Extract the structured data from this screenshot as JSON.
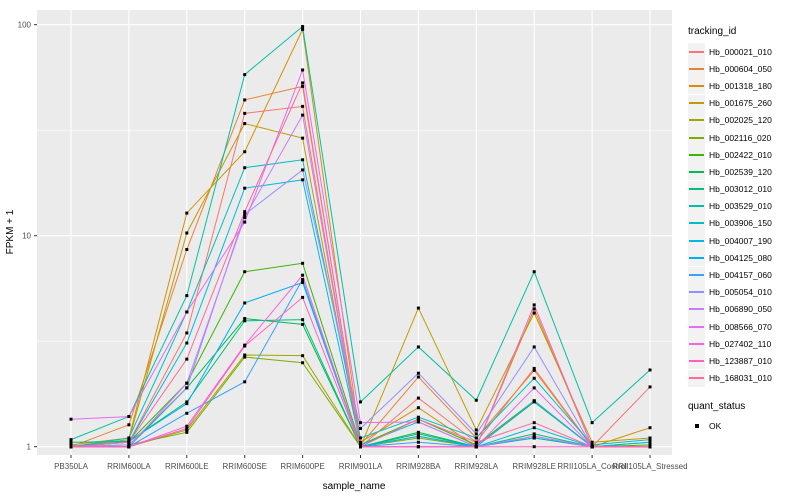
{
  "chart_data": {
    "type": "line",
    "title": "",
    "xlabel": "sample_name",
    "ylabel": "FPKM + 1",
    "yscale": "log10",
    "ylim": [
      0.91,
      117
    ],
    "yticks": [
      1,
      10,
      100
    ],
    "ytick_labels": [
      "1",
      "10",
      "100"
    ],
    "yminor": [
      3.162,
      31.62
    ],
    "grid": true,
    "panel_bg": "#ebebeb",
    "grid_color": "#ffffff",
    "point_color": "#000000",
    "point_shape": "square",
    "categories": [
      "PB350LA",
      "RRIM600LA",
      "RRIM600LE",
      "RRIM600SE",
      "RRIM600PE",
      "RRIM901LA",
      "RRIM928BA",
      "RRIM928LA",
      "RRIM928LE",
      "RRII105LA_Control",
      "RRII105LA_Stressed"
    ],
    "series": [
      {
        "name": "Hb_000021_010",
        "color": "#F8766D",
        "values": [
          1.0,
          1.05,
          3.46,
          38.0,
          41.0,
          1.0,
          1.7,
          1.05,
          2.35,
          1.0,
          1.92
        ]
      },
      {
        "name": "Hb_000604_050",
        "color": "#EA8331",
        "values": [
          1.0,
          1.27,
          8.6,
          44.0,
          51.0,
          1.02,
          2.14,
          1.1,
          2.3,
          1.0,
          1.05
        ]
      },
      {
        "name": "Hb_001318_180",
        "color": "#D89000",
        "values": [
          1.02,
          1.1,
          12.8,
          25.0,
          95.0,
          1.05,
          1.53,
          1.0,
          4.5,
          1.0,
          1.23
        ]
      },
      {
        "name": "Hb_001675_260",
        "color": "#C09B00",
        "values": [
          1.0,
          1.08,
          10.3,
          34.0,
          29.0,
          1.0,
          4.54,
          1.2,
          4.3,
          1.05,
          1.1
        ]
      },
      {
        "name": "Hb_002025_120",
        "color": "#A3A500",
        "values": [
          1.0,
          1.0,
          1.2,
          2.72,
          2.7,
          1.0,
          1.12,
          1.0,
          1.12,
          1.0,
          1.0
        ]
      },
      {
        "name": "Hb_002116_020",
        "color": "#7CAE00",
        "values": [
          1.0,
          1.02,
          1.17,
          2.66,
          2.5,
          1.0,
          1.1,
          1.0,
          1.1,
          1.0,
          1.0
        ]
      },
      {
        "name": "Hb_002422_010",
        "color": "#39B600",
        "values": [
          1.0,
          1.05,
          2.0,
          6.75,
          7.4,
          1.02,
          1.35,
          1.02,
          1.65,
          1.0,
          1.02
        ]
      },
      {
        "name": "Hb_002539_120",
        "color": "#00BB4E",
        "values": [
          1.0,
          1.0,
          1.9,
          4.05,
          3.8,
          1.0,
          1.17,
          1.0,
          1.63,
          1.0,
          1.0
        ]
      },
      {
        "name": "Hb_003012_010",
        "color": "#00BF7D",
        "values": [
          1.05,
          1.06,
          1.63,
          3.95,
          4.0,
          1.0,
          1.15,
          1.0,
          1.15,
          1.0,
          1.0
        ]
      },
      {
        "name": "Hb_003529_010",
        "color": "#00C1A3",
        "values": [
          1.08,
          1.39,
          5.2,
          58.0,
          98.0,
          1.63,
          2.97,
          1.66,
          6.75,
          1.3,
          2.31
        ]
      },
      {
        "name": "Hb_003906_150",
        "color": "#00BFC4",
        "values": [
          1.0,
          1.1,
          4.35,
          21.0,
          22.9,
          1.1,
          1.38,
          1.1,
          2.11,
          1.02,
          1.08
        ]
      },
      {
        "name": "Hb_004007_190",
        "color": "#00BAE0",
        "values": [
          1.0,
          1.05,
          3.1,
          16.8,
          18.4,
          1.02,
          1.31,
          1.0,
          1.23,
          1.0,
          1.0
        ]
      },
      {
        "name": "Hb_004125_080",
        "color": "#00B0F6",
        "values": [
          1.0,
          1.06,
          1.6,
          4.8,
          6.0,
          1.0,
          1.12,
          1.0,
          1.1,
          1.0,
          1.05
        ]
      },
      {
        "name": "Hb_004157_060",
        "color": "#35A2FF",
        "values": [
          1.0,
          1.0,
          1.44,
          2.03,
          6.2,
          1.0,
          1.05,
          1.0,
          1.65,
          1.0,
          1.0
        ]
      },
      {
        "name": "Hb_005054_010",
        "color": "#9590FF",
        "values": [
          1.0,
          1.02,
          1.9,
          12.6,
          20.5,
          1.22,
          2.23,
          1.15,
          2.97,
          1.0,
          1.0
        ]
      },
      {
        "name": "Hb_006890_050",
        "color": "#C77CFF",
        "values": [
          1.0,
          1.0,
          2.0,
          12.2,
          37.3,
          1.0,
          1.0,
          1.0,
          1.12,
          1.0,
          1.0
        ]
      },
      {
        "name": "Hb_008566_070",
        "color": "#E76BF3",
        "values": [
          1.35,
          1.39,
          4.35,
          11.6,
          61.0,
          1.3,
          1.31,
          1.0,
          1.9,
          1.0,
          1.0
        ]
      },
      {
        "name": "Hb_027402_110",
        "color": "#FA62DB",
        "values": [
          1.0,
          1.0,
          1.25,
          3.03,
          6.5,
          1.0,
          1.0,
          1.0,
          4.7,
          1.0,
          1.0
        ]
      },
      {
        "name": "Hb_123887_010",
        "color": "#FF62BC",
        "values": [
          1.0,
          1.0,
          1.22,
          3.0,
          5.1,
          1.0,
          1.0,
          1.0,
          1.0,
          1.0,
          1.0
        ]
      },
      {
        "name": "Hb_168031_010",
        "color": "#FF6A98",
        "values": [
          1.0,
          1.05,
          2.6,
          13.0,
          53.0,
          1.0,
          1.35,
          1.05,
          1.3,
          1.0,
          1.0
        ]
      }
    ],
    "legend": {
      "position": "right",
      "tracking_title": "tracking_id",
      "quant_title": "quant_status",
      "quant_label": "OK"
    }
  }
}
